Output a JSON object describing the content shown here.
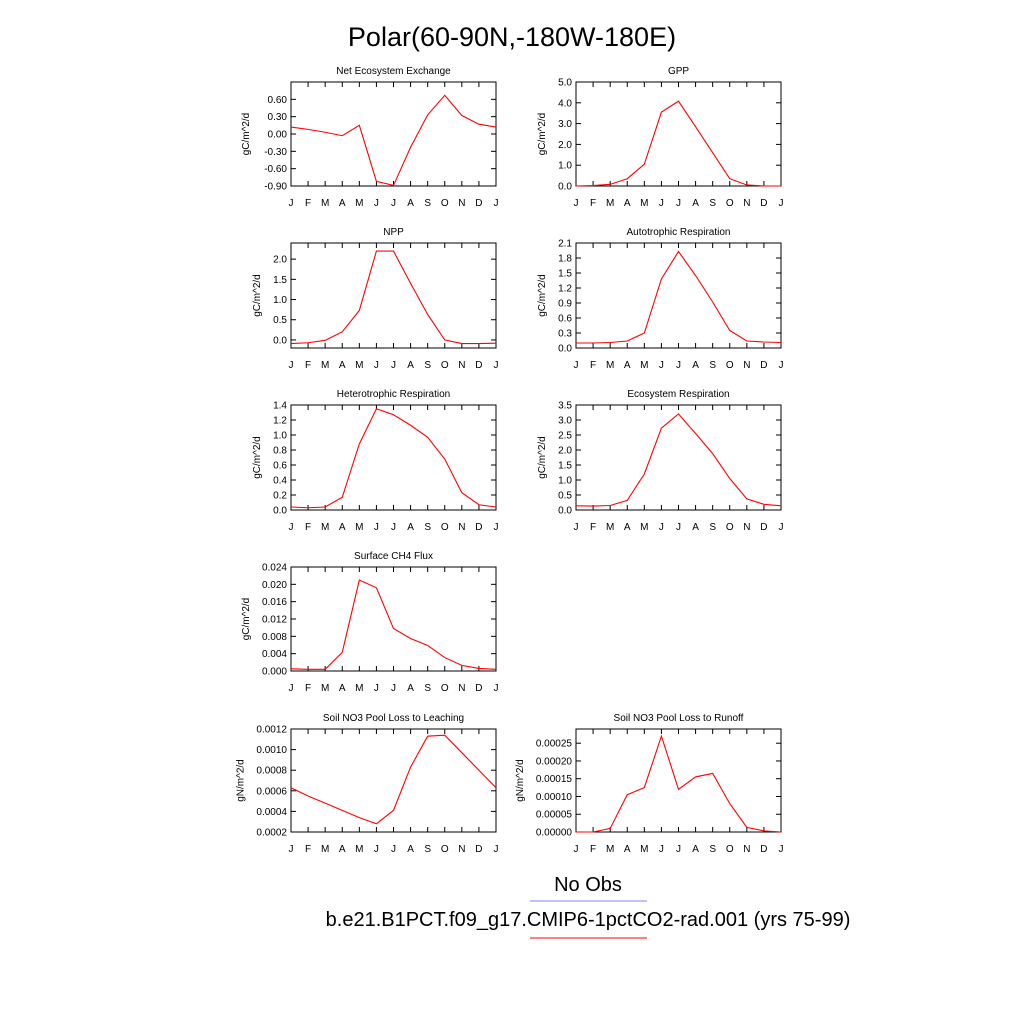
{
  "figure": {
    "title": "Polar(60-90N,-180W-180E)"
  },
  "legend": {
    "obs_label": "No Obs",
    "obs_color": "#8080ff",
    "model_label": "b.e21.B1PCT.f09_g17.CMIP6-1pctCO2-rad.001 (yrs 75-99)",
    "model_color": "#ff0000"
  },
  "chart_data": [
    {
      "type": "line",
      "title": "Net Ecosystem Exchange",
      "ylabel": "gC/m^2/d",
      "x": [
        "J",
        "F",
        "M",
        "A",
        "M",
        "J",
        "J",
        "A",
        "S",
        "O",
        "N",
        "D",
        "J"
      ],
      "ylim": [
        -0.9,
        0.9
      ],
      "yticks": [
        -0.9,
        -0.6,
        -0.3,
        0.0,
        0.3,
        0.6
      ],
      "ytick_labels": [
        "-0.90",
        "-0.60",
        "-0.30",
        "0.00",
        "0.30",
        "0.60"
      ],
      "series": [
        {
          "values": [
            0.12,
            0.08,
            0.03,
            -0.03,
            0.15,
            -0.82,
            -0.89,
            -0.23,
            0.33,
            0.67,
            0.32,
            0.17,
            0.12
          ]
        }
      ]
    },
    {
      "type": "line",
      "title": "GPP",
      "ylabel": "gC/m^2/d",
      "x": [
        "J",
        "F",
        "M",
        "A",
        "M",
        "J",
        "J",
        "A",
        "S",
        "O",
        "N",
        "D",
        "J"
      ],
      "ylim": [
        0.0,
        5.0
      ],
      "yticks": [
        0.0,
        1.0,
        2.0,
        3.0,
        4.0,
        5.0
      ],
      "ytick_labels": [
        "0.0",
        "1.0",
        "2.0",
        "3.0",
        "4.0",
        "5.0"
      ],
      "series": [
        {
          "values": [
            0.0,
            0.02,
            0.08,
            0.35,
            1.05,
            3.55,
            4.08,
            2.85,
            1.6,
            0.35,
            0.05,
            0.0,
            0.0
          ]
        }
      ]
    },
    {
      "type": "line",
      "title": "NPP",
      "ylabel": "gC/m^2/d",
      "x": [
        "J",
        "F",
        "M",
        "A",
        "M",
        "J",
        "J",
        "A",
        "S",
        "O",
        "N",
        "D",
        "J"
      ],
      "ylim": [
        -0.2,
        2.4
      ],
      "yticks": [
        0.0,
        0.5,
        1.0,
        1.5,
        2.0
      ],
      "ytick_labels": [
        "0.0",
        "0.5",
        "1.0",
        "1.5",
        "2.0"
      ],
      "series": [
        {
          "values": [
            -0.09,
            -0.07,
            -0.01,
            0.2,
            0.73,
            2.2,
            2.2,
            1.4,
            0.63,
            0.0,
            -0.09,
            -0.09,
            -0.08
          ]
        }
      ]
    },
    {
      "type": "line",
      "title": "Autotrophic Respiration",
      "ylabel": "gC/m^2/d",
      "x": [
        "J",
        "F",
        "M",
        "A",
        "M",
        "J",
        "J",
        "A",
        "S",
        "O",
        "N",
        "D",
        "J"
      ],
      "ylim": [
        0.0,
        2.1
      ],
      "yticks": [
        0.0,
        0.3,
        0.6,
        0.9,
        1.2,
        1.5,
        1.8,
        2.1
      ],
      "ytick_labels": [
        "0.0",
        "0.3",
        "0.6",
        "0.9",
        "1.2",
        "1.5",
        "1.8",
        "2.1"
      ],
      "series": [
        {
          "values": [
            0.1,
            0.1,
            0.11,
            0.14,
            0.3,
            1.38,
            1.93,
            1.45,
            0.92,
            0.35,
            0.14,
            0.12,
            0.11
          ]
        }
      ]
    },
    {
      "type": "line",
      "title": "Heterotrophic Respiration",
      "ylabel": "gC/m^2/d",
      "x": [
        "J",
        "F",
        "M",
        "A",
        "M",
        "J",
        "J",
        "A",
        "S",
        "O",
        "N",
        "D",
        "J"
      ],
      "ylim": [
        0.0,
        1.4
      ],
      "yticks": [
        0.0,
        0.2,
        0.4,
        0.6,
        0.8,
        1.0,
        1.2,
        1.4
      ],
      "ytick_labels": [
        "0.0",
        "0.2",
        "0.4",
        "0.6",
        "0.8",
        "1.0",
        "1.2",
        "1.4"
      ],
      "series": [
        {
          "values": [
            0.04,
            0.03,
            0.04,
            0.17,
            0.88,
            1.35,
            1.27,
            1.13,
            0.97,
            0.68,
            0.23,
            0.07,
            0.04
          ]
        }
      ]
    },
    {
      "type": "line",
      "title": "Ecosystem Respiration",
      "ylabel": "gC/m^2/d",
      "x": [
        "J",
        "F",
        "M",
        "A",
        "M",
        "J",
        "J",
        "A",
        "S",
        "O",
        "N",
        "D",
        "J"
      ],
      "ylim": [
        0.0,
        3.5
      ],
      "yticks": [
        0.0,
        0.5,
        1.0,
        1.5,
        2.0,
        2.5,
        3.0,
        3.5
      ],
      "ytick_labels": [
        "0.0",
        "0.5",
        "1.0",
        "1.5",
        "2.0",
        "2.5",
        "3.0",
        "3.5"
      ],
      "series": [
        {
          "values": [
            0.14,
            0.13,
            0.15,
            0.32,
            1.2,
            2.73,
            3.2,
            2.55,
            1.88,
            1.05,
            0.37,
            0.19,
            0.14
          ]
        }
      ]
    },
    {
      "type": "line",
      "title": "Surface CH4 Flux",
      "ylabel": "gC/m^2/d",
      "x": [
        "J",
        "F",
        "M",
        "A",
        "M",
        "J",
        "J",
        "A",
        "S",
        "O",
        "N",
        "D",
        "J"
      ],
      "ylim": [
        0.0,
        0.024
      ],
      "yticks": [
        0.0,
        0.004,
        0.008,
        0.012,
        0.016,
        0.02,
        0.024
      ],
      "ytick_labels": [
        "0.000",
        "0.004",
        "0.008",
        "0.012",
        "0.016",
        "0.020",
        "0.024"
      ],
      "series": [
        {
          "values": [
            0.0005,
            0.0004,
            0.0004,
            0.0043,
            0.021,
            0.0192,
            0.0098,
            0.0075,
            0.0059,
            0.0031,
            0.0013,
            0.0006,
            0.0004
          ]
        }
      ]
    },
    {
      "type": "line",
      "title": "Soil NO3 Pool Loss to Leaching",
      "ylabel": "gN/m^2/d",
      "x": [
        "J",
        "F",
        "M",
        "A",
        "M",
        "J",
        "J",
        "A",
        "S",
        "O",
        "N",
        "D",
        "J"
      ],
      "ylim": [
        0.0002,
        0.0012
      ],
      "yticks": [
        0.0002,
        0.0004,
        0.0006,
        0.0008,
        0.001,
        0.0012
      ],
      "ytick_labels": [
        "0.0002",
        "0.0004",
        "0.0006",
        "0.0008",
        "0.0010",
        "0.0012"
      ],
      "series": [
        {
          "values": [
            0.00063,
            0.00055,
            0.00048,
            0.00041,
            0.00034,
            0.00028,
            0.00041,
            0.00083,
            0.00113,
            0.00114,
            0.00097,
            0.0008,
            0.00063
          ]
        }
      ]
    },
    {
      "type": "line",
      "title": "Soil NO3 Pool Loss to Runoff",
      "ylabel": "gN/m^2/d",
      "x": [
        "J",
        "F",
        "M",
        "A",
        "M",
        "J",
        "J",
        "A",
        "S",
        "O",
        "N",
        "D",
        "J"
      ],
      "ylim": [
        0.0,
        0.00029
      ],
      "yticks": [
        0.0,
        5e-05,
        0.0001,
        0.00015,
        0.0002,
        0.00025
      ],
      "ytick_labels": [
        "0.00000",
        "0.00005",
        "0.00010",
        "0.00015",
        "0.00020",
        "0.00025"
      ],
      "series": [
        {
          "values": [
            0.0,
            0.0,
            1e-05,
            0.000105,
            0.000125,
            0.00027,
            0.00012,
            0.000155,
            0.000165,
            8e-05,
            1.3e-05,
            3e-06,
            0.0
          ]
        }
      ]
    }
  ]
}
